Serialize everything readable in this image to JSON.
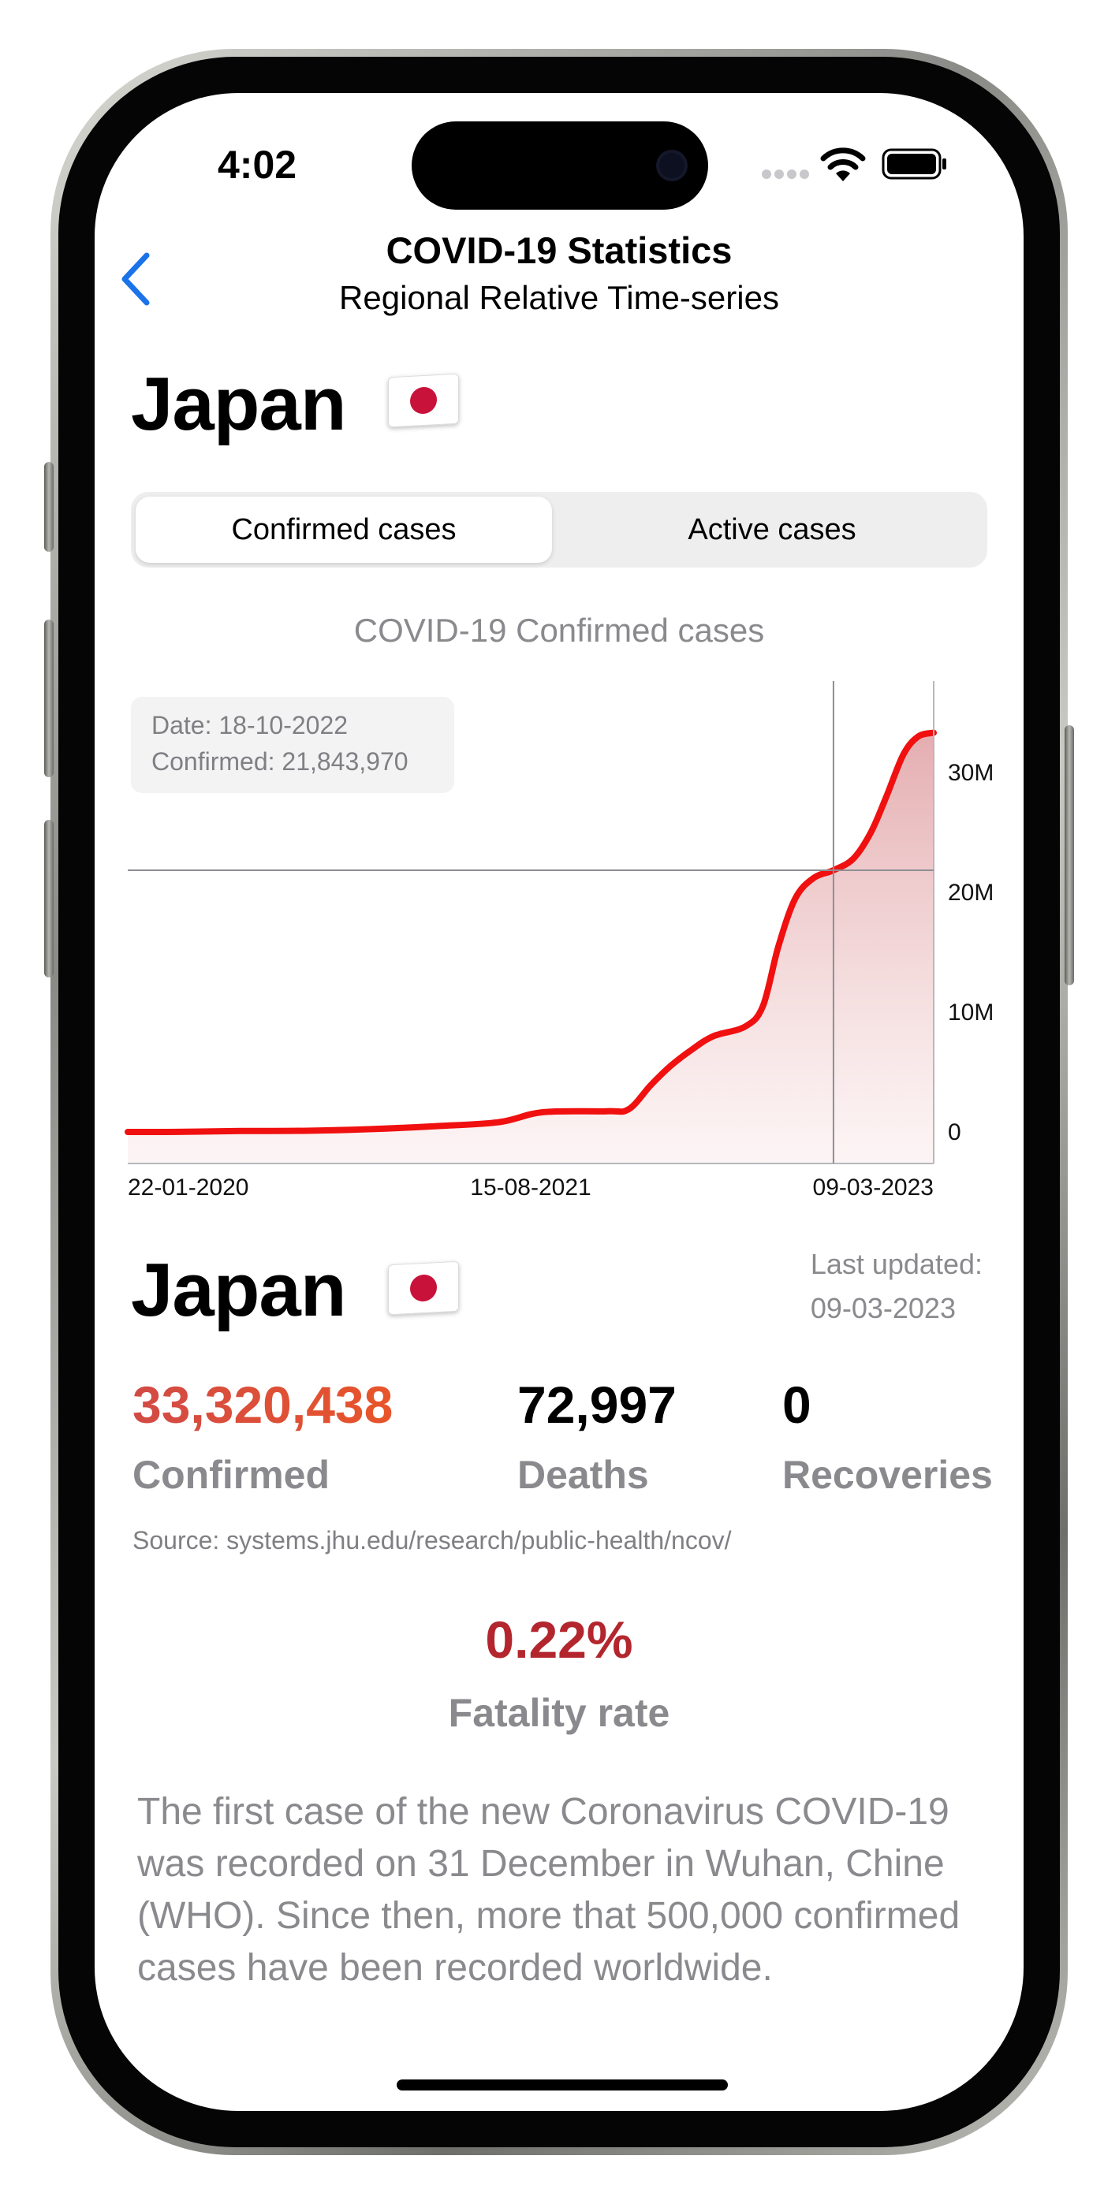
{
  "status_bar": {
    "time": "4:02"
  },
  "nav": {
    "title": "COVID-19 Statistics",
    "subtitle": "Regional Relative Time-series"
  },
  "country": {
    "name": "Japan",
    "flag_icon": "japan-flag-icon"
  },
  "segmented": {
    "options": [
      "Confirmed cases",
      "Active cases"
    ],
    "selected": "Confirmed cases"
  },
  "chart": {
    "title": "COVID-19 Confirmed cases",
    "tooltip": {
      "date": "Date: 18-10-2022",
      "confirmed": "Confirmed: 21,843,970"
    }
  },
  "chart_data": {
    "type": "area",
    "title": "COVID-19 Confirmed cases",
    "x_ticks": [
      "22-01-2020",
      "15-08-2021",
      "09-03-2023"
    ],
    "y_ticks": [
      "0",
      "10M",
      "20M",
      "30M"
    ],
    "ylim": [
      0,
      35000000
    ],
    "grid": false,
    "line_color": "#f01010",
    "fill_color": "#e8b7b9",
    "series": [
      {
        "x": [
          "2020-01-22",
          "2020-04-01",
          "2020-07-01",
          "2020-10-01",
          "2021-01-01",
          "2021-04-01",
          "2021-07-01",
          "2021-09-01",
          "2021-12-01",
          "2022-01-01",
          "2022-02-01",
          "2022-03-01",
          "2022-04-01",
          "2022-05-01",
          "2022-06-15",
          "2022-07-10",
          "2022-08-01",
          "2022-08-25",
          "2022-09-20",
          "2022-10-18",
          "2022-11-15",
          "2022-12-10",
          "2023-01-01",
          "2023-01-25",
          "2023-02-15",
          "2023-03-09"
        ],
        "values": [
          0,
          5000,
          80000,
          100000,
          240000,
          480000,
          820000,
          1650000,
          1730000,
          1900000,
          3900000,
          5500000,
          6900000,
          8000000,
          8800000,
          10500000,
          15500000,
          19500000,
          21200000,
          21843970,
          22800000,
          25000000,
          28000000,
          31500000,
          33000000,
          33320438
        ]
      }
    ],
    "crosshair": {
      "date": "2022-10-18",
      "value": 21843970
    }
  },
  "last_updated": {
    "label": "Last updated:",
    "date": "09-03-2023"
  },
  "stats": {
    "confirmed": {
      "value": "33,320,438",
      "label": "Confirmed"
    },
    "deaths": {
      "value": "72,997",
      "label": "Deaths"
    },
    "recoveries": {
      "value": "0",
      "label": "Recoveries"
    }
  },
  "source": "Source: systems.jhu.edu/research/public-health/ncov/",
  "fatality": {
    "value": "0.22%",
    "label": "Fatality rate"
  },
  "description": "The first case of the new Coronavirus COVID-19 was recorded on 31 December in Wuhan, Chine (WHO). Since then, more that 500,000 confirmed cases have been recorded worldwide.",
  "colors": {
    "accent": "#1a73e8",
    "confirmed": "#d9453b",
    "fatality": "#b3262d",
    "secondary_text": "#8a8a8e"
  }
}
